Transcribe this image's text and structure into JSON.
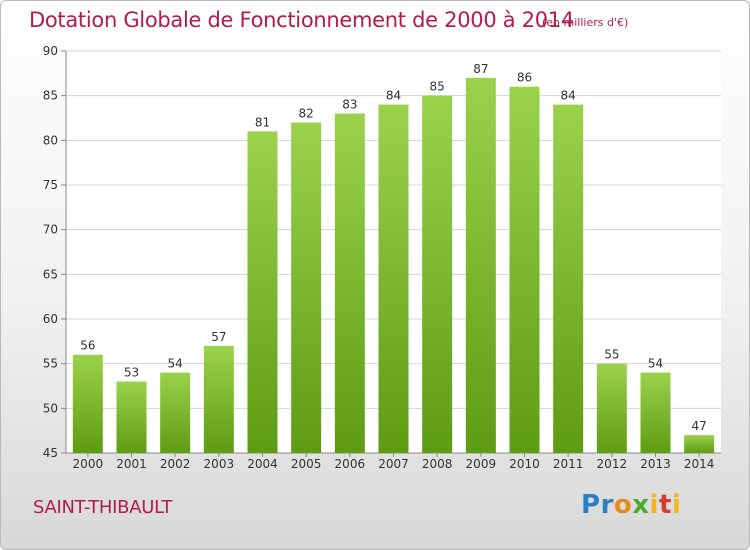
{
  "header": {
    "title": "Dotation Globale de Fonctionnement de 2000 à 2014",
    "unit": "(en milliers d'€)"
  },
  "footer": {
    "commune": "SAINT-THIBAULT",
    "brand": "Proxiti"
  },
  "colors": {
    "title": "#b21c4c",
    "bar_top": "#9bd24c",
    "bar_bottom": "#5e9c12",
    "grid": "#d4d4d4"
  },
  "chart_data": {
    "type": "bar",
    "categories": [
      "2000",
      "2001",
      "2002",
      "2003",
      "2004",
      "2005",
      "2006",
      "2007",
      "2008",
      "2009",
      "2010",
      "2011",
      "2012",
      "2013",
      "2014"
    ],
    "values": [
      56,
      53,
      54,
      57,
      81,
      82,
      83,
      84,
      85,
      87,
      86,
      84,
      55,
      54,
      47
    ],
    "title": "Dotation Globale de Fonctionnement de 2000 à 2014",
    "subtitle": "(en milliers d'€)",
    "xlabel": "",
    "ylabel": "",
    "ylim": [
      45,
      90
    ],
    "yticks": [
      45,
      50,
      55,
      60,
      65,
      70,
      75,
      80,
      85,
      90
    ],
    "grid": true,
    "data_labels": true
  }
}
